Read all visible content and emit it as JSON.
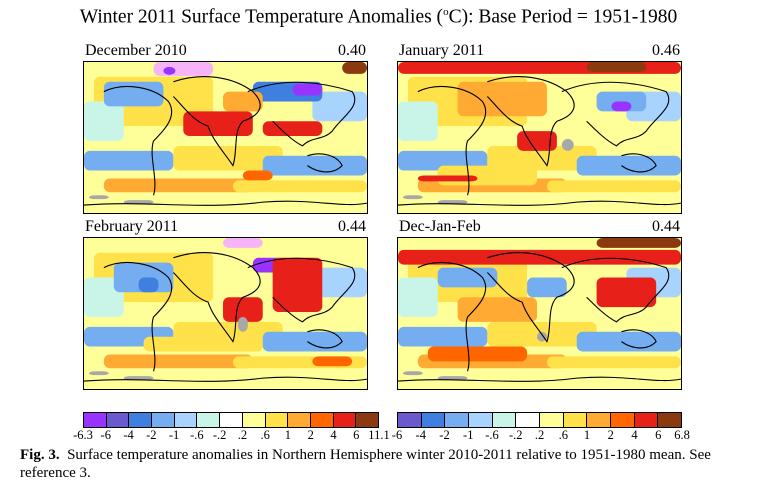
{
  "header": {
    "title_pre": "Winter 2011 Surface Temperature Anomalies (",
    "title_sup": "o",
    "title_post": "C): Base Period = 1951-1980"
  },
  "chart_data": {
    "type": "heatmap",
    "title": "Winter 2011 Surface Temperature Anomalies (°C): Base Period = 1951-1980",
    "panels": [
      {
        "name": "December 2010",
        "global_mean_anomaly": "0.40"
      },
      {
        "name": "January 2011",
        "global_mean_anomaly": "0.46"
      },
      {
        "name": "February 2011",
        "global_mean_anomaly": "0.44"
      },
      {
        "name": "Dec-Jan-Feb",
        "global_mean_anomaly": "0.44"
      }
    ],
    "colorbars": [
      {
        "labels": [
          "-6.3",
          "-6",
          "-4",
          "-2",
          "-1",
          "-.6",
          "-.2",
          ".2",
          ".6",
          "1",
          "2",
          "4",
          "6",
          "11.1"
        ]
      },
      {
        "labels": [
          "-6",
          "-4",
          "-2",
          "-1",
          "-.6",
          "-.2",
          ".2",
          ".6",
          "1",
          "2",
          "4",
          "6",
          "6.8"
        ]
      }
    ],
    "colors": [
      "#9933ff",
      "#6a5acd",
      "#3f7fe0",
      "#74aef0",
      "#a9d3ff",
      "#c9f5e9",
      "#ffffff",
      "#ffff99",
      "#ffe14a",
      "#ffaa33",
      "#ff6600",
      "#e8201a",
      "#8b3a10",
      "#f7b3f7"
    ]
  },
  "caption": {
    "label": "Fig. 3.",
    "text": "Surface temperature anomalies in Northern Hemisphere winter 2010-2011 relative to 1951-1980 mean.  See reference 3."
  }
}
